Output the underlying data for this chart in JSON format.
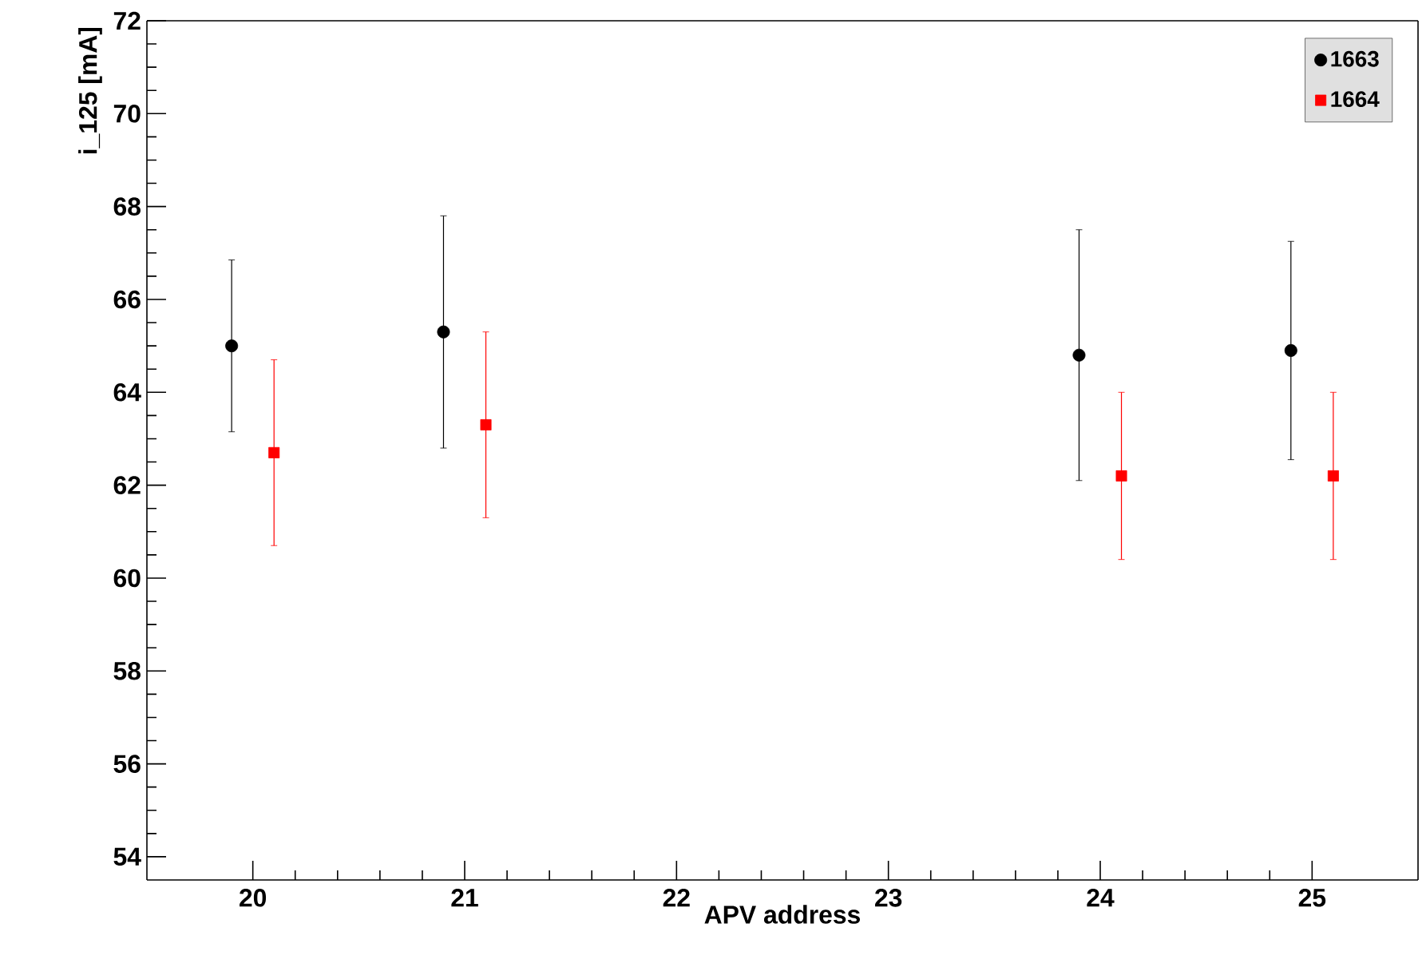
{
  "chart_data": {
    "type": "scatter",
    "xlabel": "APV address",
    "ylabel": "i_125 [mA]",
    "xlim": [
      19.5,
      25.5
    ],
    "ylim": [
      53.5,
      72
    ],
    "xticks": [
      20,
      21,
      22,
      23,
      24,
      25
    ],
    "yticks": [
      54,
      56,
      58,
      60,
      62,
      64,
      66,
      68,
      70,
      72
    ],
    "grid": false,
    "legend": "top right",
    "series": [
      {
        "name": "1663",
        "color": "#000000",
        "marker": "circle",
        "x": [
          19.9,
          20.9,
          23.9,
          24.9
        ],
        "values": [
          65.0,
          65.3,
          64.8,
          64.9
        ],
        "errors": [
          1.85,
          2.5,
          2.7,
          2.35
        ]
      },
      {
        "name": "1664",
        "color": "#ff0000",
        "marker": "square",
        "x": [
          20.1,
          21.1,
          24.1,
          25.1
        ],
        "values": [
          62.7,
          63.3,
          62.2,
          62.2
        ],
        "errors": [
          2.0,
          2.0,
          1.8,
          1.8
        ]
      }
    ]
  }
}
